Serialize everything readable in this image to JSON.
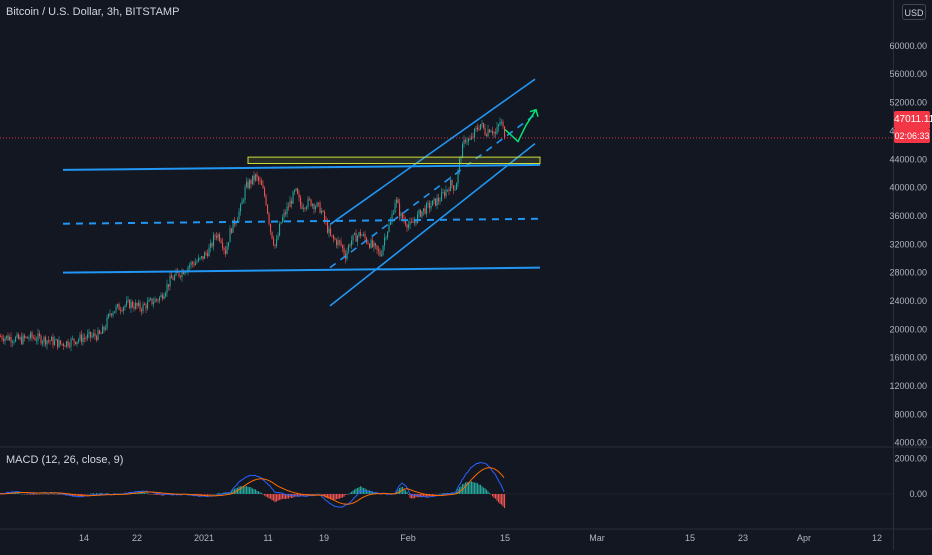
{
  "header": {
    "symbol_title": "Bitcoin / U.S. Dollar, 3h, BITSTAMP",
    "currency": "USD"
  },
  "price": {
    "last_price": "47011.11",
    "countdown": "02:06:33"
  },
  "indicator": {
    "title": "MACD (12, 26, close, 9)"
  },
  "colors": {
    "background": "#131722",
    "up": "#26a69a",
    "down": "#ef5350",
    "trendline": "#2196f3",
    "projection": "#00e676",
    "zone": "#cddc39",
    "price_line": "#f23645",
    "macd_line": "#2962ff",
    "signal_line": "#ff6d00"
  },
  "chart_data": [
    {
      "type": "candlestick",
      "series": [
        {
          "name": "BTCUSD",
          "points": [
            [
              0.0,
              19000
            ],
            [
              10,
              18800
            ],
            [
              20,
              18500
            ],
            [
              30,
              18900
            ],
            [
              40,
              18700
            ],
            [
              50,
              18400
            ],
            [
              60,
              17900
            ],
            [
              70,
              18300
            ],
            [
              80,
              18700
            ],
            [
              90,
              19000
            ],
            [
              100,
              19200
            ],
            [
              105,
              20500
            ],
            [
              110,
              22500
            ],
            [
              120,
              23200
            ],
            [
              130,
              23600
            ],
            [
              140,
              23000
            ],
            [
              150,
              23800
            ],
            [
              160,
              24500
            ],
            [
              170,
              27000
            ],
            [
              180,
              28000
            ],
            [
              190,
              29200
            ],
            [
              200,
              29800
            ],
            [
              210,
              31500
            ],
            [
              215,
              33500
            ],
            [
              220,
              33000
            ],
            [
              225,
              31000
            ],
            [
              230,
              34000
            ],
            [
              240,
              37000
            ],
            [
              245,
              40000
            ],
            [
              250,
              40800
            ],
            [
              255,
              41500
            ],
            [
              260,
              40500
            ],
            [
              265,
              38500
            ],
            [
              270,
              34000
            ],
            [
              275,
              31500
            ],
            [
              280,
              35000
            ],
            [
              290,
              38000
            ],
            [
              295,
              39500
            ],
            [
              300,
              37500
            ],
            [
              310,
              38000
            ],
            [
              320,
              37000
            ],
            [
              330,
              33000
            ],
            [
              340,
              32000
            ],
            [
              345,
              30500
            ],
            [
              350,
              32500
            ],
            [
              360,
              33500
            ],
            [
              370,
              32000
            ],
            [
              380,
              30500
            ],
            [
              385,
              33500
            ],
            [
              390,
              35000
            ],
            [
              395,
              38500
            ],
            [
              400,
              36000
            ],
            [
              410,
              34500
            ],
            [
              420,
              36500
            ],
            [
              430,
              37500
            ],
            [
              440,
              38500
            ],
            [
              450,
              40500
            ],
            [
              455,
              40000
            ],
            [
              460,
              44500
            ],
            [
              465,
              47000
            ],
            [
              470,
              46500
            ],
            [
              475,
              48000
            ],
            [
              480,
              49000
            ],
            [
              485,
              47800
            ],
            [
              490,
              48500
            ],
            [
              495,
              47500
            ],
            [
              500,
              49500
            ],
            [
              505,
              47011
            ]
          ]
        }
      ],
      "x_ticks": [
        "14",
        "22",
        "2021",
        "11",
        "19",
        "Feb",
        "15",
        "Mar",
        "15",
        "23",
        "Apr",
        "12"
      ],
      "y_ticks": [
        "60000.00",
        "56000.00",
        "52000.00",
        "48000.00",
        "44000.00",
        "40000.00",
        "36000.00",
        "32000.00",
        "28000.00",
        "24000.00",
        "20000.00",
        "16000.00",
        "12000.00",
        "8000.00",
        "4000.00"
      ],
      "ylim": [
        4000,
        60000
      ],
      "drawings": {
        "horizontal_channel_top": [
          [
            63,
            42500
          ],
          [
            540,
            43200
          ]
        ],
        "horizontal_channel_mid": [
          [
            63,
            34900
          ],
          [
            540,
            35600
          ]
        ],
        "horizontal_channel_bottom": [
          [
            63,
            28000
          ],
          [
            540,
            28700
          ]
        ],
        "rising_channel_upper": [
          [
            330,
            34800
          ],
          [
            535,
            55300
          ]
        ],
        "rising_channel_mid": [
          [
            330,
            28700
          ],
          [
            535,
            50300
          ]
        ],
        "rising_channel_lower": [
          [
            330,
            23300
          ],
          [
            535,
            46200
          ]
        ],
        "resistance_zone": [
          [
            248,
            43400
          ],
          [
            540,
            44300
          ]
        ],
        "projection_path": [
          [
            505,
            48200
          ],
          [
            518,
            46500
          ],
          [
            526,
            48800
          ],
          [
            536,
            51000
          ]
        ]
      }
    },
    {
      "type": "macd",
      "y_ticks": [
        "2000.00",
        "0.00"
      ],
      "ylim": [
        -1000,
        2600
      ]
    }
  ]
}
